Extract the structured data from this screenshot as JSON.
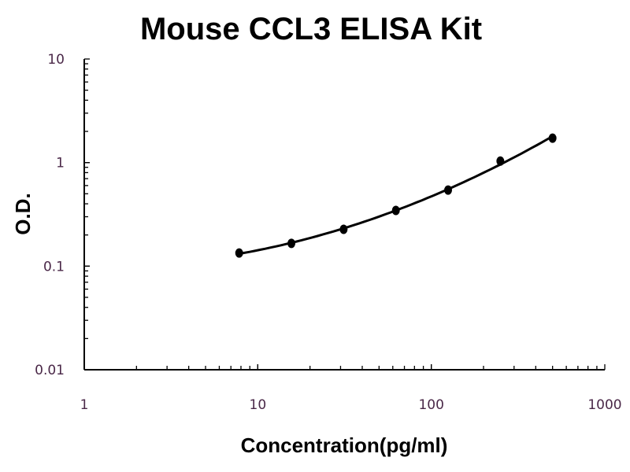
{
  "chart_data": {
    "type": "line",
    "title": "Mouse CCL3 ELISA Kit",
    "xlabel": "Concentration(pg/ml)",
    "ylabel": "O.D.",
    "x_scale": "log",
    "y_scale": "log",
    "xlim": [
      1,
      1000
    ],
    "ylim": [
      0.01,
      10
    ],
    "x_ticks": [
      "1",
      "10",
      "100",
      "1000"
    ],
    "y_ticks": [
      "0.01",
      "0.1",
      "1",
      "10"
    ],
    "grid": false,
    "series": [
      {
        "x": [
          7.8125,
          15.625,
          31.25,
          62.5,
          125,
          250,
          500
        ],
        "y": [
          0.134,
          0.166,
          0.227,
          0.345,
          0.543,
          1.035,
          1.72
        ],
        "marker": "circle",
        "line": "smooth-fit",
        "color": "#000000"
      }
    ]
  }
}
